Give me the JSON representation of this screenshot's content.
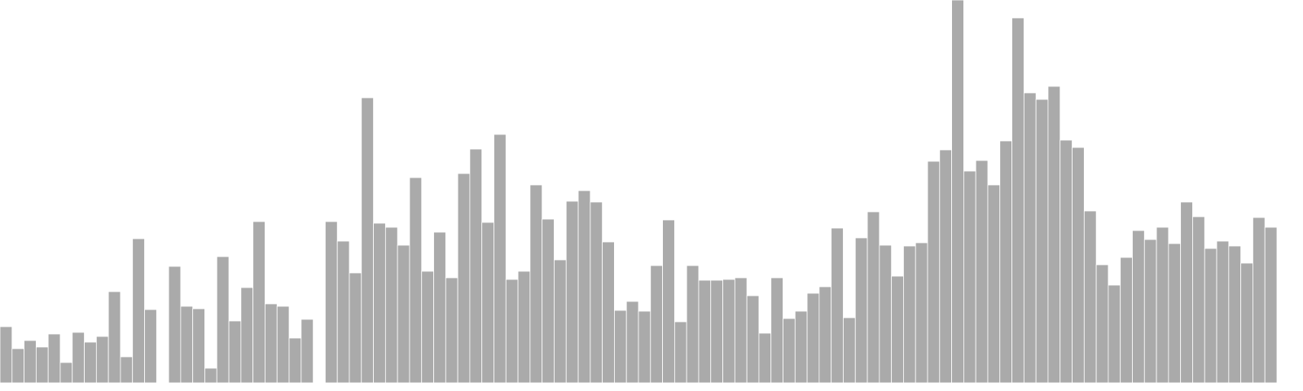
{
  "chart_data": {
    "type": "bar",
    "color": "#aaaaaa",
    "ylim": [
      0,
      470
    ],
    "values": [
      69,
      42,
      52,
      44,
      60,
      25,
      62,
      50,
      57,
      112,
      32,
      177,
      90,
      null,
      143,
      94,
      91,
      18,
      155,
      76,
      117,
      198,
      97,
      94,
      55,
      78,
      null,
      198,
      174,
      135,
      350,
      196,
      191,
      169,
      252,
      137,
      185,
      129,
      257,
      287,
      197,
      305,
      127,
      137,
      243,
      201,
      151,
      223,
      236,
      222,
      173,
      89,
      100,
      88,
      144,
      200,
      75,
      144,
      126,
      126,
      127,
      129,
      107,
      61,
      129,
      79,
      88,
      110,
      118,
      190,
      80,
      178,
      210,
      169,
      131,
      168,
      172,
      272,
      286,
      470,
      260,
      273,
      243,
      297,
      448,
      356,
      348,
      364,
      298,
      289,
      211,
      145,
      120,
      154,
      187,
      176,
      191,
      171,
      222,
      204,
      165,
      174,
      168,
      147,
      203,
      191
    ]
  }
}
